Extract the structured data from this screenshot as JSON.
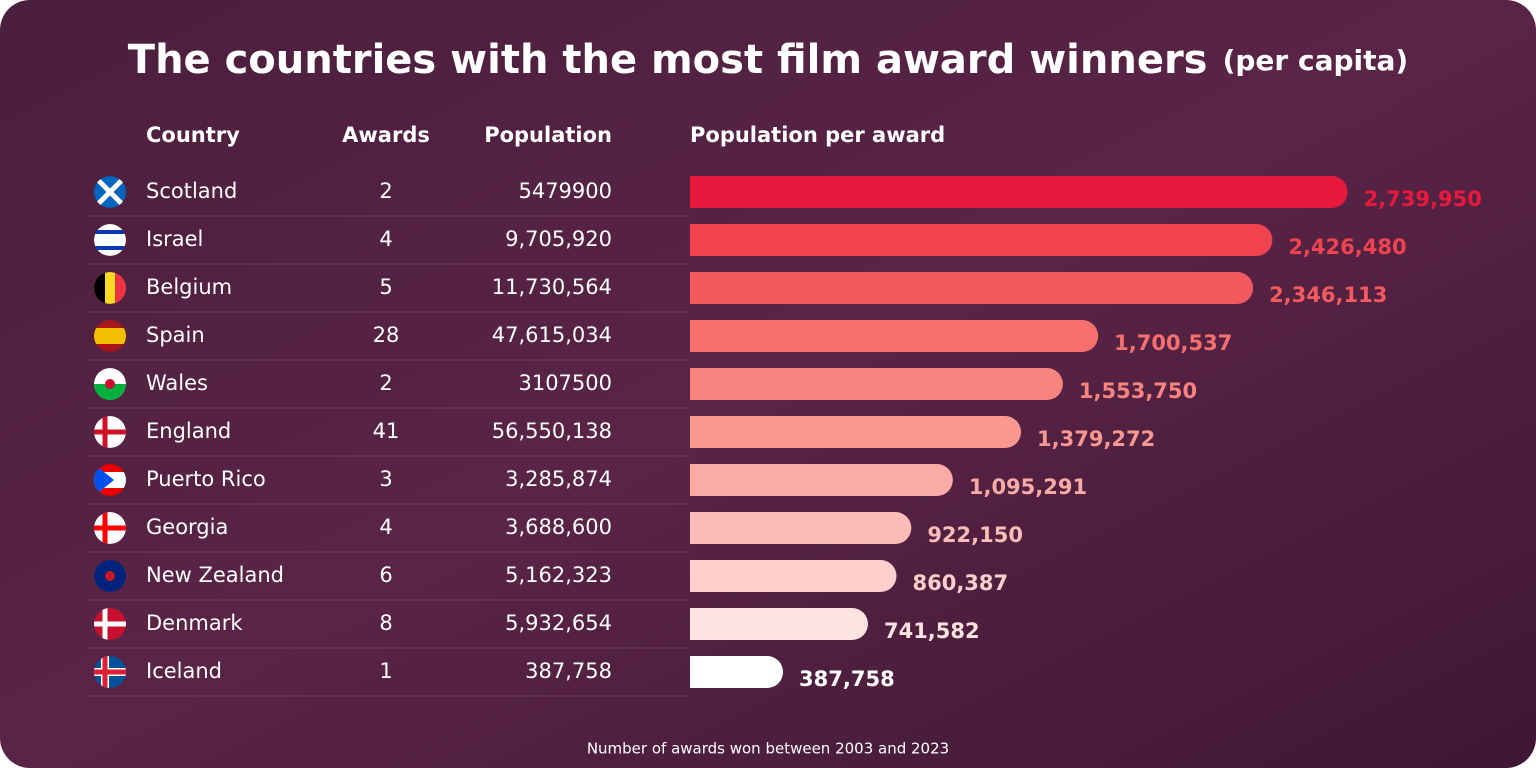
{
  "chart_data": {
    "type": "bar",
    "title": "The countries with the most film award winners",
    "subtitle": "(per capita)",
    "columns": [
      "Country",
      "Awards",
      "Population",
      "Population per award"
    ],
    "categories": [
      "Scotland",
      "Israel",
      "Belgium",
      "Spain",
      "Wales",
      "England",
      "Puerto Rico",
      "Georgia",
      "New Zealand",
      "Denmark",
      "Iceland"
    ],
    "awards": [
      2,
      4,
      5,
      28,
      2,
      41,
      3,
      4,
      6,
      8,
      1
    ],
    "population": [
      "5479900",
      "9,705,920",
      "11,730,564",
      "47,615,034",
      "3107500",
      "56,550,138",
      "3,285,874",
      "3,688,600",
      "5,162,323",
      "5,932,654",
      "387,758"
    ],
    "values": [
      2739950,
      2426480,
      2346113,
      1700537,
      1553750,
      1379272,
      1095291,
      922150,
      860387,
      741582,
      387758
    ],
    "value_labels": [
      "2,739,950",
      "2,426,480",
      "2,346,113",
      "1,700,537",
      "1,553,750",
      "1,379,272",
      "1,095,291",
      "922,150",
      "860,387",
      "741,582",
      "387,758"
    ],
    "colors": [
      "#e8193c",
      "#f0434f",
      "#f25a5f",
      "#f5706e",
      "#f7847f",
      "#f99891",
      "#fbaba5",
      "#fcbdb8",
      "#fdd0cc",
      "#fee3e1",
      "#ffffff"
    ],
    "xlim": [
      0,
      3000000
    ],
    "footnote": "Number of awards won between 2003 and 2023"
  }
}
